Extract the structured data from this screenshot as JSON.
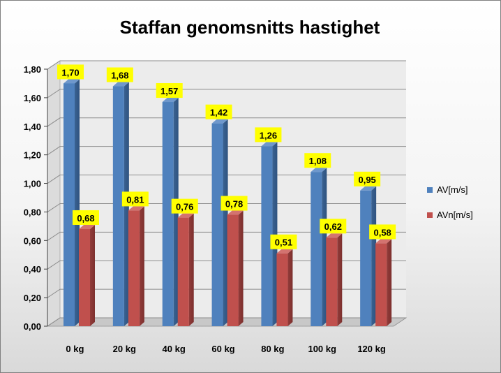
{
  "chart_data": {
    "type": "bar",
    "title": "Staffan genomsnitts hastighet",
    "categories": [
      "0 kg",
      "20 kg",
      "40 kg",
      "60 kg",
      "80 kg",
      "100 kg",
      "120 kg"
    ],
    "series": [
      {
        "name": "AV[m/s]",
        "color": "#4f81bd",
        "values": [
          1.7,
          1.68,
          1.57,
          1.42,
          1.26,
          1.08,
          0.95
        ],
        "labels": [
          "1,70",
          "1,68",
          "1,57",
          "1,42",
          "1,26",
          "1,08",
          "0,95"
        ]
      },
      {
        "name": "AVn[m/s]",
        "color": "#c0504d",
        "values": [
          0.68,
          0.81,
          0.76,
          0.78,
          0.51,
          0.62,
          0.58
        ],
        "labels": [
          "0,68",
          "0,81",
          "0,76",
          "0,78",
          "0,51",
          "0,62",
          "0,58"
        ]
      }
    ],
    "ylim": [
      0,
      1.8
    ],
    "yticks": [
      "0,00",
      "0,20",
      "0,40",
      "0,60",
      "0,80",
      "1,00",
      "1,20",
      "1,40",
      "1,60",
      "1,80"
    ],
    "grid": true,
    "legend": "right",
    "data_label_background": "#ffff00"
  }
}
